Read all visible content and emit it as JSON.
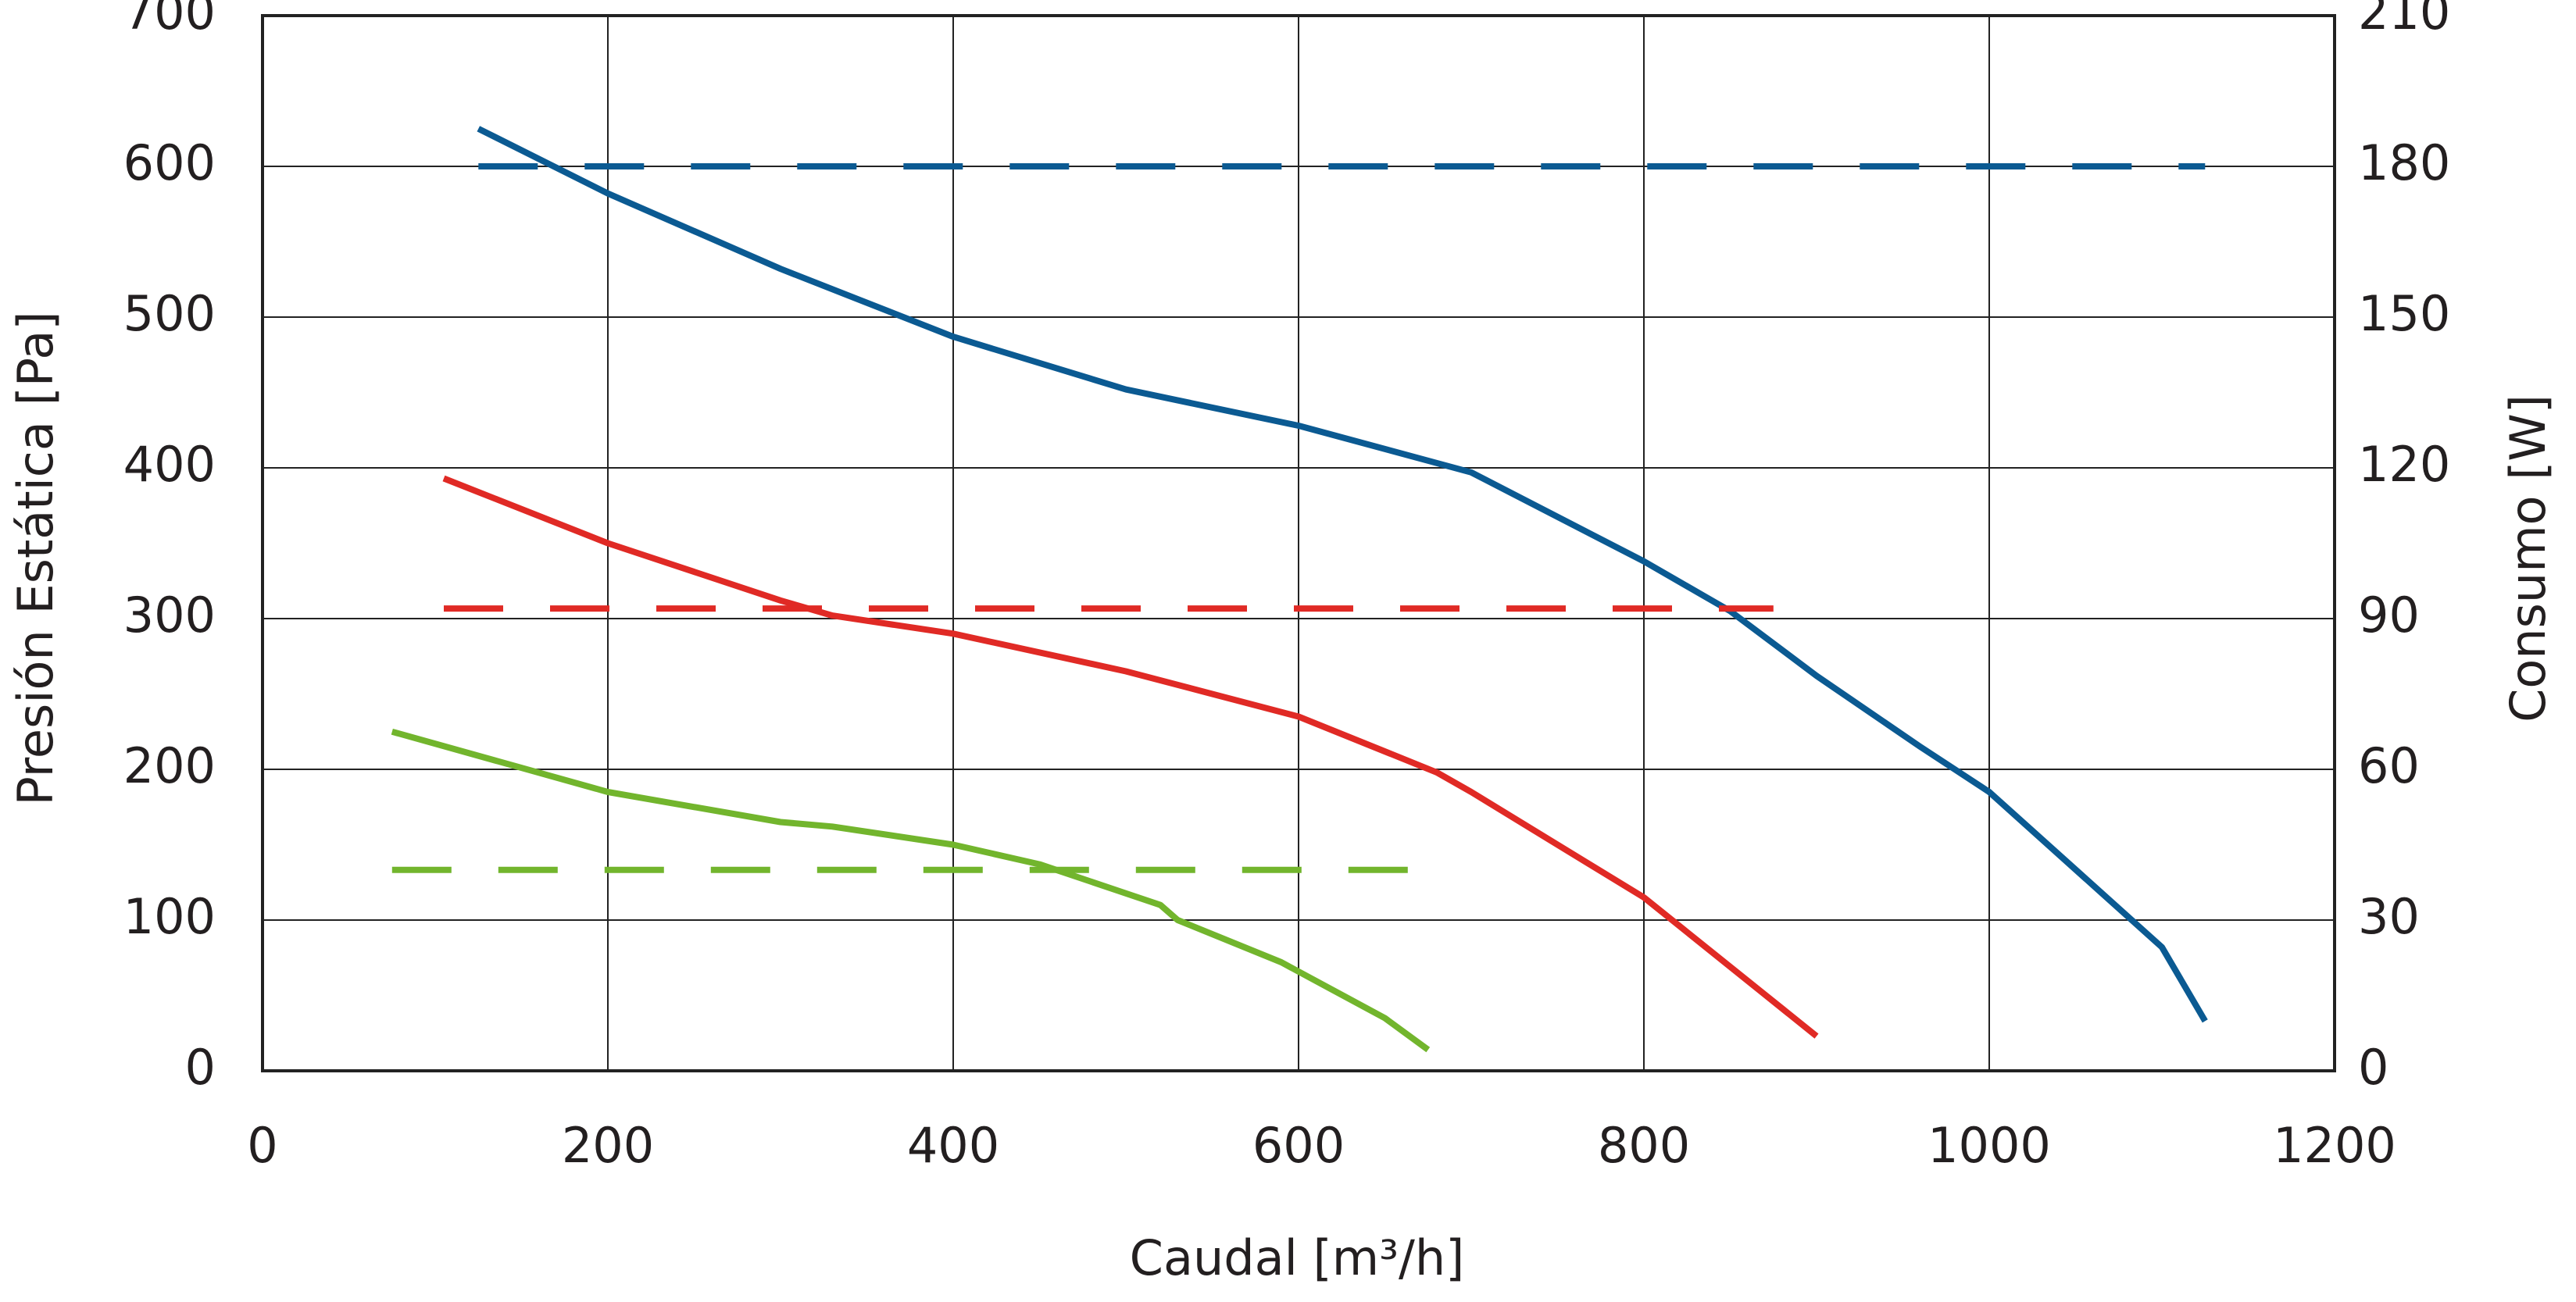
{
  "chart_data": {
    "type": "line",
    "xlabel": "Caudal [m³/h]",
    "ylabel": "Presión Estática [Pa]",
    "y2label": "Consumo [W]",
    "xlim": [
      0,
      1200
    ],
    "xticks": [
      0,
      200,
      400,
      600,
      800,
      1000,
      1200
    ],
    "ylim": [
      0,
      700
    ],
    "yticks": [
      0,
      100,
      200,
      300,
      400,
      500,
      600,
      700
    ],
    "y2lim": [
      0,
      210
    ],
    "y2ticks": [
      0,
      30,
      60,
      90,
      120,
      150,
      180,
      210
    ],
    "grid": true,
    "series": [
      {
        "color": "#0b5a92",
        "axis": "y",
        "linestyle": "solid",
        "x": [
          125,
          200,
          300,
          400,
          500,
          600,
          700,
          800,
          850,
          900,
          960,
          1000,
          1100,
          1125
        ],
        "values": [
          625,
          582,
          532,
          487,
          452,
          428,
          397,
          338,
          305,
          262,
          215,
          185,
          82,
          33
        ]
      },
      {
        "color": "#0b5a92",
        "axis": "y2",
        "linestyle": "dashed",
        "x": [
          125,
          1125
        ],
        "values": [
          180,
          180
        ]
      },
      {
        "color": "#e02a25",
        "axis": "y",
        "linestyle": "solid",
        "x": [
          105,
          200,
          300,
          330,
          400,
          500,
          600,
          680,
          700,
          800,
          900
        ],
        "values": [
          393,
          350,
          312,
          302,
          290,
          265,
          235,
          198,
          185,
          115,
          23
        ]
      },
      {
        "color": "#e02a25",
        "axis": "y2",
        "linestyle": "dashed",
        "x": [
          105,
          875
        ],
        "values": [
          92,
          92
        ]
      },
      {
        "color": "#72b52d",
        "axis": "y",
        "linestyle": "solid",
        "x": [
          75,
          200,
          300,
          330,
          400,
          450,
          520,
          530,
          590,
          650,
          675
        ],
        "values": [
          225,
          185,
          165,
          162,
          150,
          137,
          110,
          100,
          72,
          35,
          14
        ]
      },
      {
        "color": "#72b52d",
        "axis": "y2",
        "linestyle": "dashed",
        "x": [
          75,
          665
        ],
        "values": [
          40,
          40
        ]
      }
    ]
  }
}
